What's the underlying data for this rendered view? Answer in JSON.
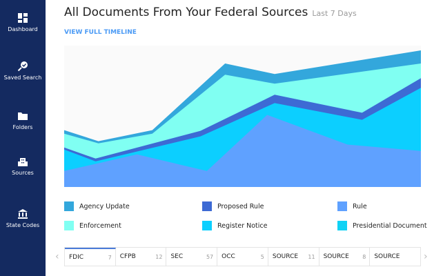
{
  "sidebar": {
    "items": [
      {
        "label": "Dashboard",
        "icon": "dashboard-icon"
      },
      {
        "label": "Saved Search",
        "icon": "saved-search-icon"
      },
      {
        "label": "Folders",
        "icon": "folder-icon"
      },
      {
        "label": "Sources",
        "icon": "building-icon"
      },
      {
        "label": "State Codes",
        "icon": "capitol-icon"
      }
    ]
  },
  "header": {
    "title": "All Documents From Your Federal Sources",
    "subtitle": "Last 7 Days",
    "link": "VIEW FULL TIMELINE"
  },
  "chart_data": {
    "type": "area",
    "stacked": true,
    "axes_visible": false,
    "background": "#fafafa",
    "series": [
      {
        "name": "Agency Update",
        "color": "#33a7dc",
        "top": [
          [
            0,
            40.2
          ],
          [
            9.6,
            32.4
          ],
          [
            24.7,
            40.2
          ],
          [
            45.1,
            87.3
          ],
          [
            59,
            79.9
          ],
          [
            100,
            96.6
          ]
        ]
      },
      {
        "name": "Enforcement",
        "color": "#80fff2",
        "top": [
          [
            0,
            37.7
          ],
          [
            9.6,
            30.9
          ],
          [
            24.7,
            37.7
          ],
          [
            45.1,
            79.4
          ],
          [
            59,
            73
          ],
          [
            100,
            87.3
          ]
        ]
      },
      {
        "name": "Proposed Rule",
        "color": "#3d6ad4",
        "top": [
          [
            0,
            27.9
          ],
          [
            8.8,
            20.1
          ],
          [
            38.2,
            39.7
          ],
          [
            59,
            65.2
          ],
          [
            83.5,
            52.5
          ],
          [
            100,
            77
          ]
        ]
      },
      {
        "name": "Register Notice",
        "color": "#0ccfff",
        "top": [
          [
            0,
            26.5
          ],
          [
            8.8,
            18.1
          ],
          [
            38.2,
            35.8
          ],
          [
            59,
            59.3
          ],
          [
            83.5,
            47.5
          ],
          [
            100,
            70.1
          ]
        ]
      },
      {
        "name": "Rule",
        "color": "#5fa1ff",
        "top": [
          [
            0,
            11.3
          ],
          [
            20.4,
            23
          ],
          [
            40,
            11.3
          ],
          [
            56.9,
            51
          ],
          [
            79.4,
            30
          ],
          [
            100,
            25.5
          ]
        ]
      },
      {
        "name": "Presidential Document",
        "color": "#10d2f5",
        "top": []
      }
    ]
  },
  "legend": [
    {
      "label": "Agency Update",
      "color": "#33a7dc"
    },
    {
      "label": "Proposed Rule",
      "color": "#3d6ad4"
    },
    {
      "label": "Rule",
      "color": "#5fa1ff"
    },
    {
      "label": "Enforcement",
      "color": "#80fff2"
    },
    {
      "label": "Register Notice",
      "color": "#0ccfff"
    },
    {
      "label": "Presidential Document",
      "color": "#10d2f5"
    }
  ],
  "tabs": [
    {
      "label": "FDIC",
      "count": "7"
    },
    {
      "label": "CFPB",
      "count": "12"
    },
    {
      "label": "SEC",
      "count": "57"
    },
    {
      "label": "OCC",
      "count": "5"
    },
    {
      "label": "SOURCE",
      "count": "11"
    },
    {
      "label": "SOURCE",
      "count": "8"
    },
    {
      "label": "SOURCE",
      "count": ""
    }
  ]
}
